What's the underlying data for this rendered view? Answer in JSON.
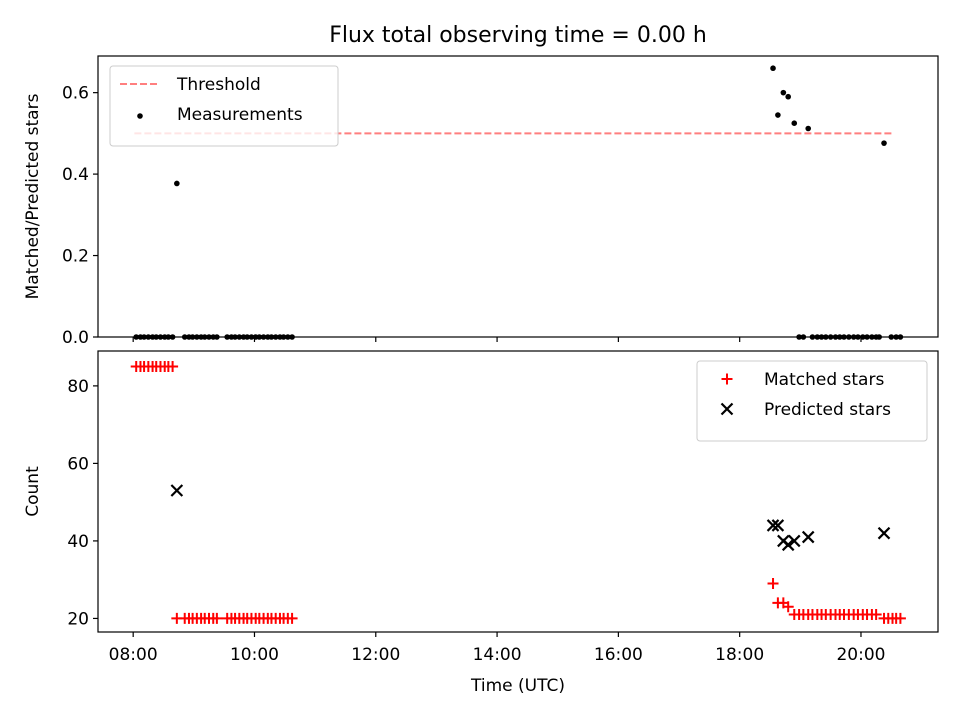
{
  "title": "Flux total observing time = 0.00 h",
  "chart_data": [
    {
      "type": "scatter",
      "ylabel": "Matched/Predicted stars",
      "xlabel": "",
      "xlim": [
        7.42,
        21.27
      ],
      "ylim": [
        0.0,
        0.69
      ],
      "yticks": [
        0.0,
        0.2,
        0.4,
        0.6
      ],
      "ytick_labels": [
        "0.0",
        "0.2",
        "0.4",
        "0.6"
      ],
      "xticks": [
        8,
        10,
        12,
        14,
        16,
        18,
        20
      ],
      "xtick_labels_visible": false,
      "legend_position": "top-left",
      "threshold": {
        "name": "Threshold",
        "value": 0.5,
        "x_range": [
          8.02,
          20.55
        ],
        "color": "#ff7f7f",
        "style": "dashed"
      },
      "series": [
        {
          "name": "Measurements",
          "marker": "dot",
          "color": "#000000",
          "x": [
            8.05,
            8.12,
            8.18,
            8.25,
            8.32,
            8.38,
            8.45,
            8.52,
            8.58,
            8.65,
            8.72,
            8.85,
            8.92,
            8.98,
            9.05,
            9.12,
            9.18,
            9.25,
            9.32,
            9.38,
            9.55,
            9.62,
            9.68,
            9.75,
            9.82,
            9.88,
            9.95,
            10.02,
            10.08,
            10.15,
            10.22,
            10.28,
            10.35,
            10.42,
            10.48,
            10.55,
            10.62,
            18.55,
            18.63,
            18.72,
            18.8,
            18.9,
            19.13,
            18.98,
            19.05,
            19.2,
            19.28,
            19.35,
            19.42,
            19.5,
            19.58,
            19.65,
            19.72,
            19.8,
            19.88,
            19.95,
            20.03,
            20.1,
            20.18,
            20.25,
            20.3,
            20.38,
            20.5,
            20.58,
            20.65
          ],
          "y": [
            0,
            0,
            0,
            0,
            0,
            0,
            0,
            0,
            0,
            0,
            0.377,
            0,
            0,
            0,
            0,
            0,
            0,
            0,
            0,
            0,
            0,
            0,
            0,
            0,
            0,
            0,
            0,
            0,
            0,
            0,
            0,
            0,
            0,
            0,
            0,
            0,
            0,
            0.66,
            0.545,
            0.6,
            0.59,
            0.525,
            0.512,
            0,
            0,
            0,
            0,
            0,
            0,
            0,
            0,
            0,
            0,
            0,
            0,
            0,
            0,
            0,
            0,
            0,
            0,
            0.476,
            0,
            0,
            0
          ]
        }
      ]
    },
    {
      "type": "scatter",
      "ylabel": "Count",
      "xlabel": "Time (UTC)",
      "xlim": [
        7.42,
        21.27
      ],
      "ylim": [
        16.5,
        89
      ],
      "yticks": [
        20,
        40,
        60,
        80
      ],
      "ytick_labels": [
        "20",
        "40",
        "60",
        "80"
      ],
      "xticks": [
        8,
        10,
        12,
        14,
        16,
        18,
        20
      ],
      "xtick_labels": [
        "08:00",
        "10:00",
        "12:00",
        "14:00",
        "16:00",
        "18:00",
        "20:00"
      ],
      "legend_position": "top-right",
      "series": [
        {
          "name": "Matched stars",
          "marker": "plus",
          "color": "#ff0000",
          "x": [
            8.05,
            8.12,
            8.18,
            8.25,
            8.32,
            8.38,
            8.45,
            8.52,
            8.58,
            8.65,
            8.72,
            8.85,
            8.92,
            8.98,
            9.05,
            9.12,
            9.18,
            9.25,
            9.32,
            9.38,
            9.55,
            9.62,
            9.68,
            9.75,
            9.82,
            9.88,
            9.95,
            10.02,
            10.08,
            10.15,
            10.22,
            10.28,
            10.35,
            10.42,
            10.48,
            10.55,
            10.62,
            18.55,
            18.63,
            18.72,
            18.8,
            18.9,
            18.98,
            19.05,
            19.13,
            19.2,
            19.28,
            19.35,
            19.42,
            19.5,
            19.58,
            19.65,
            19.72,
            19.8,
            19.88,
            19.95,
            20.03,
            20.1,
            20.18,
            20.25,
            20.38,
            20.45,
            20.52,
            20.58,
            20.65
          ],
          "y": [
            85,
            85,
            85,
            85,
            85,
            85,
            85,
            85,
            85,
            85,
            20,
            20,
            20,
            20,
            20,
            20,
            20,
            20,
            20,
            20,
            20,
            20,
            20,
            20,
            20,
            20,
            20,
            20,
            20,
            20,
            20,
            20,
            20,
            20,
            20,
            20,
            20,
            29,
            24,
            24,
            23,
            21,
            21,
            21,
            21,
            21,
            21,
            21,
            21,
            21,
            21,
            21,
            21,
            21,
            21,
            21,
            21,
            21,
            21,
            21,
            20,
            20,
            20,
            20,
            20
          ]
        },
        {
          "name": "Predicted stars",
          "marker": "x",
          "color": "#000000",
          "x": [
            8.72,
            18.55,
            18.63,
            18.72,
            18.8,
            18.9,
            19.13,
            20.38
          ],
          "y": [
            53,
            44,
            44,
            40,
            39,
            40,
            41,
            42
          ]
        }
      ]
    }
  ]
}
